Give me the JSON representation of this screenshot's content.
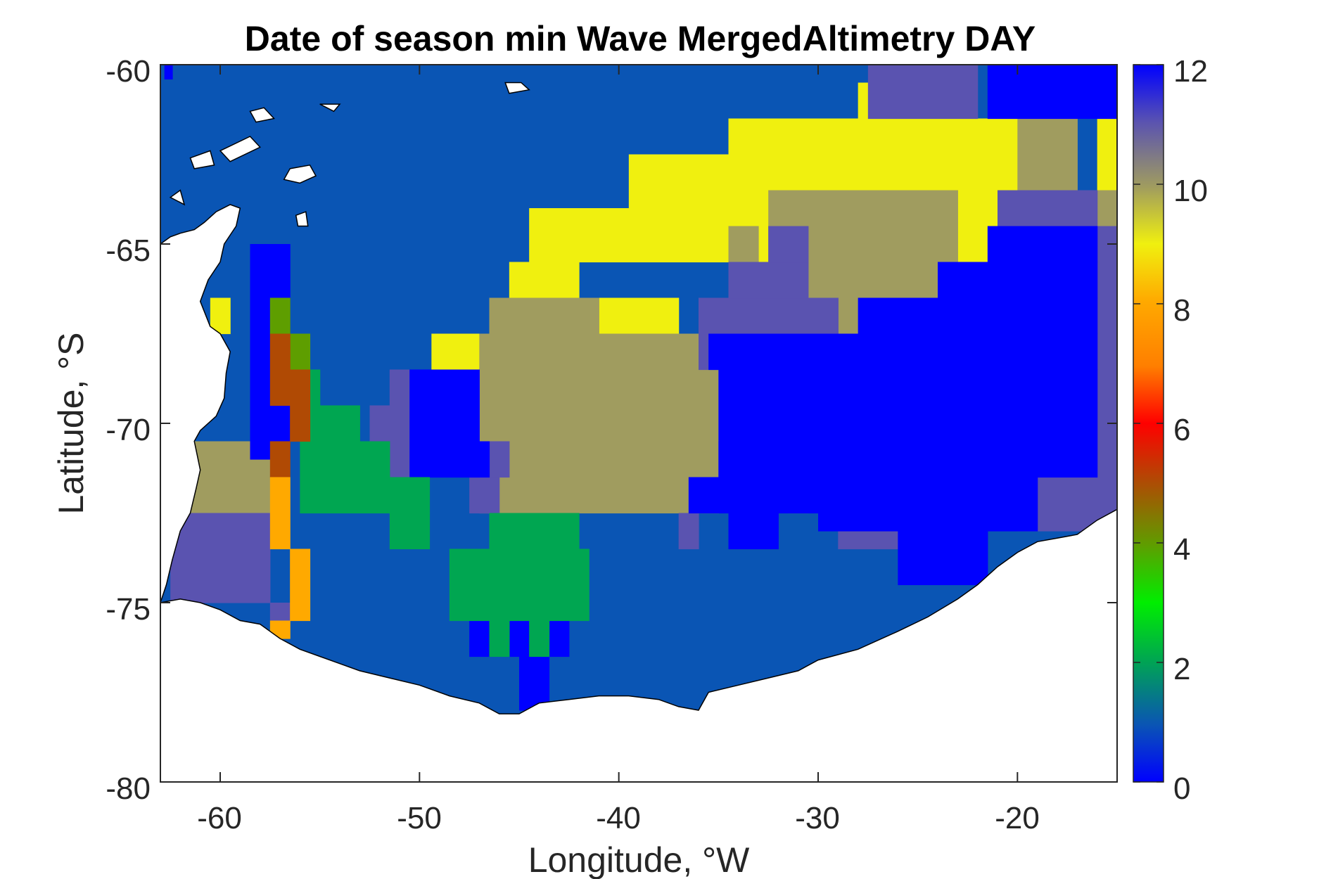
{
  "title": "Date of season min Wave MergedAltimetry DAY",
  "xlabel": "Longitude, °W",
  "ylabel": "Latitude, °S",
  "x_ticks": [
    "-60",
    "-50",
    "-40",
    "-30",
    "-20"
  ],
  "y_ticks": [
    "-60",
    "-65",
    "-70",
    "-75",
    "-80"
  ],
  "colorbar": {
    "tick_labels": [
      "0",
      "2",
      "4",
      "6",
      "8",
      "10",
      "12"
    ],
    "range": [
      0,
      12
    ]
  },
  "colors": {
    "c0": "#0000ff",
    "c1": "#0a55b4",
    "c2": "#00a651",
    "c4": "#5e9e00",
    "c5": "#b04a04",
    "c8": "#ffa900",
    "c9": "#f0f00f",
    "c10": "#a09c5f",
    "c11": "#5a53b0",
    "coast": "#000000"
  },
  "chart_data": {
    "type": "heatmap",
    "title": "Date of season min Wave MergedAltimetry DAY",
    "xlabel": "Longitude, °W",
    "ylabel": "Latitude, °S",
    "xlim": [
      -63,
      -15
    ],
    "ylim": [
      -80,
      -60
    ],
    "x_ticks": [
      -60,
      -50,
      -40,
      -30,
      -20
    ],
    "y_ticks": [
      -60,
      -65,
      -70,
      -75,
      -80
    ],
    "colorbar_range": [
      0,
      12
    ],
    "colorbar_ticks": [
      0,
      2,
      4,
      6,
      8,
      10,
      12
    ],
    "region_values": [
      {
        "value": 1,
        "region": "background ocean (west and south)"
      },
      {
        "value": 9,
        "region": "diagonal band from -49W/-68S to -20W/-62S"
      },
      {
        "value": 10,
        "region": "central patch -47..-35W, -67..-72.5S"
      },
      {
        "value": 10,
        "region": "eastern strip -33..-20W, -63.5..-67.5S"
      },
      {
        "value": 11,
        "region": "north-east -27..-22W, -60..-61.5S"
      },
      {
        "value": 11,
        "region": "mixed patches -37..-15W, -64..-73S"
      },
      {
        "value": 0,
        "region": "east block -35..-16W, -67..-74.5S"
      },
      {
        "value": 0,
        "region": "north-east corner -22..-15W, -60..-61.5S"
      },
      {
        "value": 0,
        "region": "west coast strip -58..-56.5W, -65..-71S"
      },
      {
        "value": 2,
        "region": "Weddell west -56..-49W, -69..-73.5S"
      },
      {
        "value": 2,
        "region": "south-central -48..-41W, -72.5..-76.5S"
      },
      {
        "value": 4,
        "region": "cells near -57W, -67..-69S"
      },
      {
        "value": 5,
        "region": "cells near -57W, -68..-71.5S"
      },
      {
        "value": 8,
        "region": "coastal cells -57..-56W, -72..-76S"
      },
      {
        "value": 10,
        "region": "western coast -61..-57W, -70.5..-72.5S"
      },
      {
        "value": 11,
        "region": "south-west coast -62..-57W, -72.5..-75S"
      }
    ]
  }
}
